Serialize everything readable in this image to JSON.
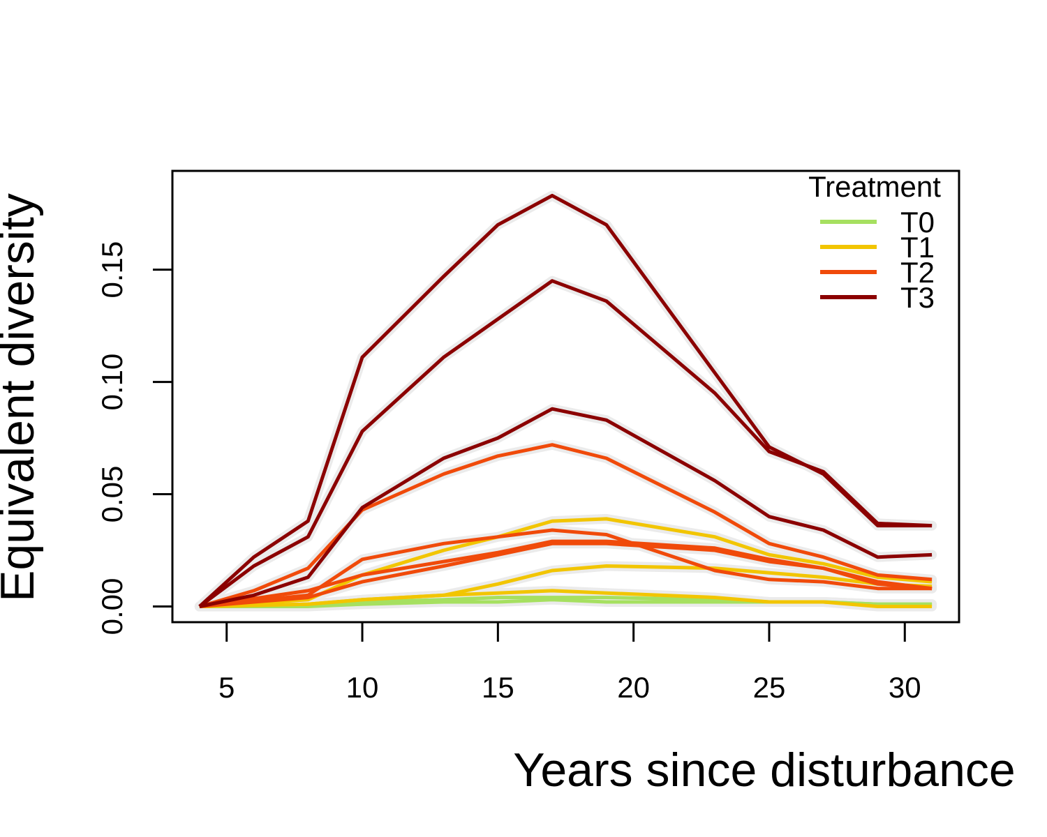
{
  "chart_data": {
    "type": "line",
    "xlabel": "Years since disturbance",
    "ylabel": "Equivalent diversity",
    "xlim": [
      3,
      32
    ],
    "ylim": [
      -0.007,
      0.194
    ],
    "x_ticks": [
      5,
      10,
      15,
      20,
      25,
      30
    ],
    "y_ticks": [
      0.0,
      0.05,
      0.1,
      0.15
    ],
    "y_tick_labels": [
      "0.00",
      "0.05",
      "0.10",
      "0.15"
    ],
    "grid": false,
    "legend": {
      "title": "Treatment",
      "position": "top-right",
      "entries": [
        "T0",
        "T1",
        "T2",
        "T3"
      ]
    },
    "colors": {
      "T0": "#a6e060",
      "T1": "#f2c500",
      "T2": "#f04a0a",
      "T3": "#8b0000"
    },
    "series": [
      {
        "treatment": "T0",
        "x": [
          4,
          8,
          10,
          13,
          15,
          17,
          19,
          23,
          25,
          27,
          29,
          31
        ],
        "y": [
          0.0,
          0.0,
          0.001,
          0.002,
          0.002,
          0.003,
          0.002,
          0.002,
          0.002,
          0.002,
          0.001,
          0.001
        ]
      },
      {
        "treatment": "T0",
        "x": [
          4,
          8,
          10,
          13,
          15,
          17,
          19,
          23,
          25,
          27,
          29,
          31
        ],
        "y": [
          0.0,
          0.001,
          0.002,
          0.003,
          0.004,
          0.004,
          0.004,
          0.003,
          0.002,
          0.002,
          0.001,
          0.001
        ]
      },
      {
        "treatment": "T1",
        "x": [
          4,
          8,
          10,
          13,
          15,
          17,
          19,
          23,
          25,
          27,
          29,
          31
        ],
        "y": [
          0.0,
          0.001,
          0.003,
          0.005,
          0.006,
          0.007,
          0.006,
          0.004,
          0.002,
          0.002,
          0.0,
          0.0
        ]
      },
      {
        "treatment": "T1",
        "x": [
          4,
          8,
          10,
          13,
          15,
          17,
          19,
          23,
          25,
          27,
          29,
          31
        ],
        "y": [
          0.0,
          0.001,
          0.003,
          0.005,
          0.01,
          0.016,
          0.018,
          0.017,
          0.015,
          0.013,
          0.01,
          0.009
        ]
      },
      {
        "treatment": "T1",
        "x": [
          4,
          8,
          10,
          13,
          15,
          17,
          19,
          23,
          25,
          27,
          29,
          31
        ],
        "y": [
          0.0,
          0.003,
          0.014,
          0.025,
          0.031,
          0.038,
          0.039,
          0.031,
          0.023,
          0.019,
          0.013,
          0.011
        ]
      },
      {
        "treatment": "T2",
        "x": [
          4,
          8,
          10,
          13,
          15,
          17,
          19,
          23,
          25,
          27,
          29,
          31
        ],
        "y": [
          0.0,
          0.004,
          0.011,
          0.018,
          0.023,
          0.028,
          0.028,
          0.025,
          0.02,
          0.017,
          0.01,
          0.008
        ]
      },
      {
        "treatment": "T2",
        "x": [
          4,
          8,
          10,
          13,
          15,
          17,
          19,
          23,
          25,
          27,
          29,
          31
        ],
        "y": [
          0.0,
          0.005,
          0.021,
          0.028,
          0.031,
          0.034,
          0.032,
          0.016,
          0.012,
          0.011,
          0.008,
          0.008
        ]
      },
      {
        "treatment": "T2",
        "x": [
          4,
          8,
          10,
          13,
          15,
          17,
          19,
          23,
          25,
          27,
          29,
          31
        ],
        "y": [
          0.0,
          0.007,
          0.014,
          0.02,
          0.024,
          0.029,
          0.029,
          0.026,
          0.021,
          0.017,
          0.011,
          0.008
        ]
      },
      {
        "treatment": "T2",
        "x": [
          4,
          6,
          8,
          10,
          13,
          15,
          17,
          19,
          23,
          25,
          27,
          29,
          31
        ],
        "y": [
          0.0,
          0.007,
          0.017,
          0.043,
          0.059,
          0.067,
          0.072,
          0.066,
          0.042,
          0.028,
          0.022,
          0.014,
          0.012
        ]
      },
      {
        "treatment": "T3",
        "x": [
          4,
          6,
          8,
          10,
          13,
          15,
          17,
          19,
          23,
          25,
          27,
          29,
          31
        ],
        "y": [
          0.0,
          0.005,
          0.013,
          0.044,
          0.066,
          0.075,
          0.088,
          0.083,
          0.056,
          0.04,
          0.034,
          0.022,
          0.023
        ]
      },
      {
        "treatment": "T3",
        "x": [
          4,
          6,
          8,
          10,
          13,
          15,
          17,
          19,
          23,
          25,
          27,
          29,
          31
        ],
        "y": [
          0.0,
          0.018,
          0.031,
          0.078,
          0.111,
          0.128,
          0.145,
          0.136,
          0.095,
          0.069,
          0.06,
          0.037,
          0.036
        ]
      },
      {
        "treatment": "T3",
        "x": [
          4,
          6,
          8,
          10,
          13,
          15,
          17,
          19,
          23,
          25,
          27,
          29,
          31
        ],
        "y": [
          0.0,
          0.022,
          0.038,
          0.111,
          0.147,
          0.17,
          0.183,
          0.17,
          0.104,
          0.071,
          0.059,
          0.036,
          0.036
        ]
      }
    ]
  }
}
